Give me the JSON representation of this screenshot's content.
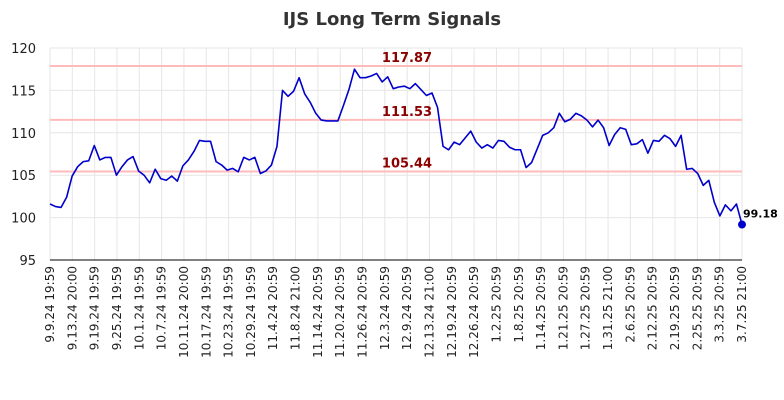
{
  "chart_data": {
    "type": "line",
    "title": "IJS Long Term Signals",
    "xlabel": "",
    "ylabel": "",
    "ylim": [
      95,
      120
    ],
    "y_ticks": [
      95,
      100,
      105,
      110,
      115,
      120
    ],
    "grid": true,
    "x_tick_labels": [
      "9.9.24 19:59",
      "9.13.24 20:00",
      "9.19.24 19:59",
      "9.25.24 19:59",
      "10.1.24 19:59",
      "10.7.24 19:59",
      "10.11.24 20:00",
      "10.17.24 19:59",
      "10.23.24 19:59",
      "10.29.24 19:59",
      "11.4.24 20:59",
      "11.8.24 21:00",
      "11.14.24 20:59",
      "11.20.24 20:59",
      "11.26.24 20:59",
      "12.3.24 20:59",
      "12.9.24 20:59",
      "12.13.24 21:00",
      "12.19.24 20:59",
      "12.26.24 20:59",
      "1.2.25 20:59",
      "1.8.25 20:59",
      "1.14.25 20:59",
      "1.21.25 20:59",
      "1.27.25 20:59",
      "1.31.25 21:00",
      "2.6.25 20:59",
      "2.12.25 20:59",
      "2.19.25 20:59",
      "2.25.25 20:59",
      "3.3.25 20:59",
      "3.7.25 21:00"
    ],
    "reference_lines": [
      {
        "value": 117.87,
        "label": "117.87"
      },
      {
        "value": 111.53,
        "label": "111.53"
      },
      {
        "value": 105.44,
        "label": "105.44"
      }
    ],
    "series": [
      {
        "values": [
          101.6,
          101.3,
          101.2,
          102.4,
          104.9,
          106.0,
          106.6,
          106.7,
          108.5,
          106.8,
          107.1,
          107.1,
          105.0,
          106.0,
          106.8,
          107.2,
          105.5,
          105.0,
          104.1,
          105.7,
          104.6,
          104.4,
          104.9,
          104.3,
          106.1,
          106.8,
          107.8,
          109.1,
          109.0,
          109.0,
          106.6,
          106.2,
          105.6,
          105.8,
          105.4,
          107.1,
          106.8,
          107.1,
          105.2,
          105.5,
          106.2,
          108.4,
          115.0,
          114.3,
          114.9,
          116.5,
          114.6,
          113.6,
          112.3,
          111.5,
          111.4,
          111.4,
          111.4,
          113.2,
          115.1,
          117.5,
          116.5,
          116.5,
          116.7,
          117.0,
          116.0,
          116.6,
          115.2,
          115.4,
          115.5,
          115.2,
          115.8,
          115.1,
          114.4,
          114.7,
          113.0,
          108.4,
          108.0,
          108.9,
          108.6,
          109.4,
          110.2,
          108.9,
          108.2,
          108.6,
          108.2,
          109.1,
          109.0,
          108.3,
          108.0,
          108.0,
          105.9,
          106.5,
          108.1,
          109.7,
          110.0,
          110.6,
          112.3,
          111.3,
          111.6,
          112.3,
          112.0,
          111.5,
          110.7,
          111.5,
          110.6,
          108.5,
          109.8,
          110.6,
          110.4,
          108.6,
          108.7,
          109.2,
          107.6,
          109.1,
          109.0,
          109.7,
          109.3,
          108.4,
          109.7,
          105.7,
          105.8,
          105.2,
          103.8,
          104.4,
          101.8,
          100.2,
          101.5,
          100.8,
          101.6,
          99.18
        ]
      }
    ],
    "last_value": 99.18,
    "last_label": "99.18",
    "colors": {
      "line": "#0000cc",
      "ref_line": "#ffbbbb",
      "ref_label": "#8b0000",
      "grid": "#e6e6e6",
      "last_marker": "#0000cc"
    }
  }
}
